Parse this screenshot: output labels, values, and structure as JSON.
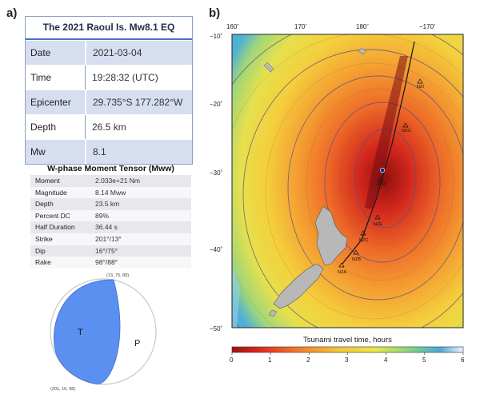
{
  "panel_a": {
    "label": "a)",
    "eq_table": {
      "title": "The 2021 Raoul Is. Mw8.1 EQ",
      "rows": [
        {
          "key": "Date",
          "value": "2021-03-04"
        },
        {
          "key": "Time",
          "value": "19:28:32 (UTC)"
        },
        {
          "key": "Epicenter",
          "value": "29.735°S 177.282°W"
        },
        {
          "key": "Depth",
          "value": "26.5 km"
        },
        {
          "key": "Mw",
          "value": "8.1"
        }
      ]
    },
    "wphase_table": {
      "title": "W-phase Moment Tensor (Mww)",
      "rows": [
        {
          "key": "Moment",
          "value": "2.033e+21 Nm"
        },
        {
          "key": "Magnitude",
          "value": "8.14 Mww"
        },
        {
          "key": "Depth",
          "value": "23.5 km"
        },
        {
          "key": "Percent DC",
          "value": "89%"
        },
        {
          "key": "Half Duration",
          "value": "36.44 s"
        },
        {
          "key": "Strike",
          "value": "201°/13°"
        },
        {
          "key": "Dip",
          "value": "16°/75°"
        },
        {
          "key": "Rake",
          "value": "98°/88°"
        }
      ]
    },
    "beachball": {
      "top_label": "(13, 75, 88)",
      "bottom_label": "(201, 16, 98)",
      "t_label": "T",
      "p_label": "P",
      "compression_color": "#5b8ff0"
    }
  },
  "panel_b": {
    "label": "b)",
    "lon_ticks": [
      "160˚",
      "170˚",
      "180˚",
      "−170˚"
    ],
    "lat_ticks": [
      "−10˚",
      "−20˚",
      "−30˚",
      "−40˚",
      "−50˚"
    ],
    "stations": [
      {
        "name": "NZI"
      },
      {
        "name": "NZG"
      },
      {
        "name": "RNZ"
      },
      {
        "name": "NZE"
      },
      {
        "name": "NZC"
      },
      {
        "name": "NZB"
      },
      {
        "name": "NZA"
      }
    ],
    "colorbar": {
      "title": "Tsunami travel time, hours",
      "ticks": [
        "0",
        "1",
        "2",
        "3",
        "4",
        "5",
        "6"
      ],
      "colors": [
        "#a01010",
        "#e0281c",
        "#f07a2a",
        "#f5c23a",
        "#e8e84a",
        "#7ed18a",
        "#4aa8d8",
        "#f0f4ff"
      ]
    }
  }
}
